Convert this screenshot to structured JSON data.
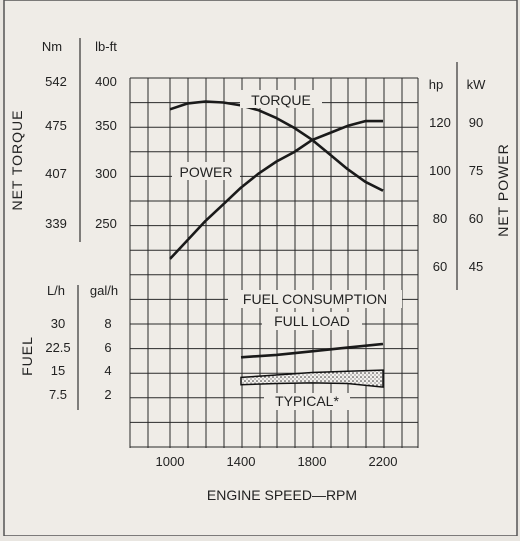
{
  "chart_data": {
    "type": "line",
    "xlabel": "ENGINE SPEED—RPM",
    "x_ticks": [
      "1000",
      "1400",
      "1800",
      "2200"
    ],
    "xlim": [
      1000,
      2200
    ],
    "torque": {
      "axis_label": "NET TORQUE",
      "unit_metric": "Nm",
      "unit_imperial": "lb-ft",
      "ticks_metric": [
        "542",
        "475",
        "407",
        "339"
      ],
      "ticks_imperial": [
        "400",
        "350",
        "300",
        "250"
      ],
      "ylim_lbft": [
        250,
        400
      ]
    },
    "power": {
      "axis_label": "NET POWER",
      "unit_hp": "hp",
      "unit_kw": "kW",
      "ticks_hp": [
        "120",
        "100",
        "80",
        "60"
      ],
      "ticks_kw": [
        "90",
        "75",
        "60",
        "45"
      ],
      "ylim_hp": [
        60,
        120
      ]
    },
    "fuel": {
      "axis_label": "FUEL",
      "unit_metric": "L/h",
      "unit_imperial": "gal/h",
      "ticks_metric": [
        "30",
        "22.5",
        "15",
        "7.5"
      ],
      "ticks_imperial": [
        "8",
        "6",
        "4",
        "2"
      ],
      "ylim_galh": [
        2,
        8
      ]
    },
    "series": [
      {
        "name": "TORQUE",
        "axis": "torque",
        "x": [
          1000,
          1100,
          1200,
          1300,
          1400,
          1500,
          1600,
          1700,
          1800,
          1900,
          2000,
          2100,
          2200
        ],
        "y": [
          366,
          372,
          374,
          373,
          370,
          365,
          357,
          347,
          335,
          320,
          305,
          292,
          283
        ]
      },
      {
        "name": "POWER",
        "axis": "power",
        "x": [
          1000,
          1100,
          1200,
          1300,
          1400,
          1500,
          1600,
          1700,
          1800,
          1900,
          2000,
          2100,
          2200
        ],
        "y": [
          63,
          71,
          79,
          86,
          93,
          99,
          104,
          108,
          113,
          116,
          119,
          121,
          121
        ]
      },
      {
        "name": "FULL LOAD",
        "axis": "fuel",
        "x": [
          1400,
          1600,
          1800,
          2000,
          2200
        ],
        "y": [
          5.1,
          5.3,
          5.6,
          5.9,
          6.2
        ]
      },
      {
        "name": "TYPICAL*",
        "axis": "fuel",
        "band": true,
        "x": [
          1400,
          1600,
          1800,
          2000,
          2200
        ],
        "y_low": [
          2.85,
          2.95,
          3.0,
          2.95,
          2.65
        ],
        "y_high": [
          3.45,
          3.65,
          3.85,
          3.95,
          4.05
        ]
      }
    ],
    "annotations": [
      "TORQUE",
      "POWER",
      "FUEL CONSUMPTION",
      "FULL LOAD",
      "TYPICAL*"
    ],
    "grid": true
  }
}
